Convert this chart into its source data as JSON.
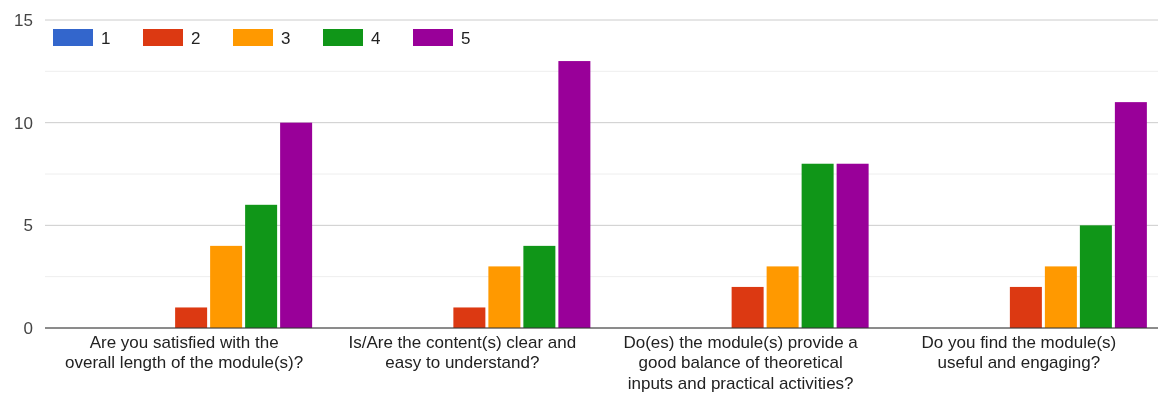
{
  "chart_data": {
    "type": "bar",
    "categories": [
      "Are you satisfied with the overall length of the module(s)?",
      "Is/Are the content(s) clear and easy to understand?",
      "Do(es) the module(s) provide a good balance of theoretical inputs and practical activities?",
      "Do you find the module(s) useful and engaging?"
    ],
    "series": [
      {
        "name": "1",
        "color": "#3366cc",
        "values": [
          0,
          0,
          0,
          0
        ]
      },
      {
        "name": "2",
        "color": "#dc3912",
        "values": [
          1,
          1,
          2,
          2
        ]
      },
      {
        "name": "3",
        "color": "#ff9900",
        "values": [
          4,
          3,
          3,
          3
        ]
      },
      {
        "name": "4",
        "color": "#109618",
        "values": [
          6,
          4,
          8,
          5
        ]
      },
      {
        "name": "5",
        "color": "#990099",
        "values": [
          10,
          13,
          8,
          11
        ]
      }
    ],
    "ylim": [
      0,
      15
    ],
    "yticks": [
      0,
      {
        "value": 2.5,
        "label": null
      },
      5,
      {
        "value": 7.5,
        "label": null
      },
      10,
      {
        "value": 12.5,
        "label": null
      },
      15
    ],
    "grid": true,
    "legend": "top left"
  }
}
